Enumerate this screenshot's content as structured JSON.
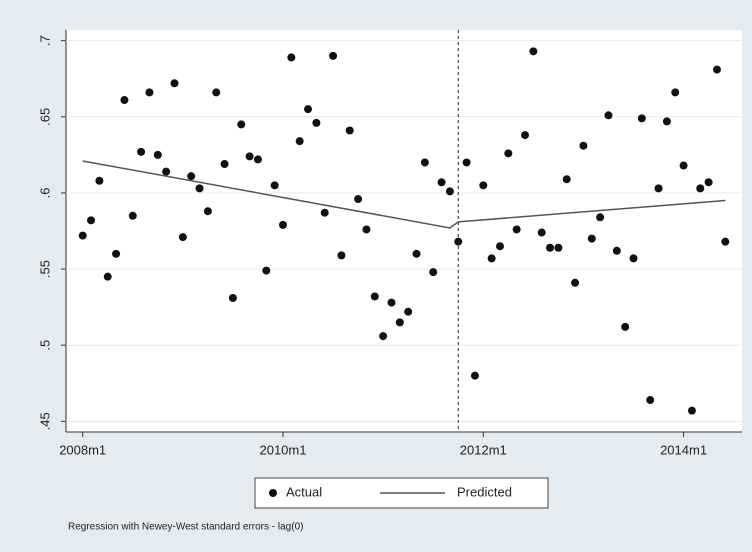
{
  "chart_data": {
    "type": "scatter",
    "note": "Regression with Newey-West standard errors - lag(0)",
    "x": [
      "2008m1",
      "2008m2",
      "2008m3",
      "2008m4",
      "2008m5",
      "2008m6",
      "2008m7",
      "2008m8",
      "2008m9",
      "2008m10",
      "2008m11",
      "2008m12",
      "2009m1",
      "2009m2",
      "2009m3",
      "2009m4",
      "2009m5",
      "2009m6",
      "2009m7",
      "2009m8",
      "2009m9",
      "2009m10",
      "2009m11",
      "2009m12",
      "2010m1",
      "2010m2",
      "2010m3",
      "2010m4",
      "2010m5",
      "2010m6",
      "2010m7",
      "2010m8",
      "2010m9",
      "2010m10",
      "2010m11",
      "2010m12",
      "2011m1",
      "2011m2",
      "2011m3",
      "2011m4",
      "2011m5",
      "2011m6",
      "2011m7",
      "2011m8",
      "2011m9",
      "2011m10",
      "2011m11",
      "2011m12",
      "2012m1",
      "2012m2",
      "2012m3",
      "2012m4",
      "2012m5",
      "2012m6",
      "2012m7",
      "2012m8",
      "2012m9",
      "2012m10",
      "2012m11",
      "2012m12",
      "2013m1",
      "2013m2",
      "2013m3",
      "2013m4",
      "2013m5",
      "2013m6",
      "2013m7",
      "2013m8",
      "2013m9",
      "2013m10",
      "2013m11",
      "2013m12",
      "2014m1",
      "2014m2",
      "2014m3",
      "2014m4",
      "2014m5",
      "2014m6"
    ],
    "series": [
      {
        "name": "Actual",
        "color": "#111111",
        "values": [
          0.572,
          0.582,
          0.608,
          0.545,
          0.56,
          0.661,
          0.585,
          0.627,
          0.666,
          0.625,
          0.614,
          0.672,
          0.571,
          0.611,
          0.603,
          0.588,
          0.666,
          0.619,
          0.531,
          0.645,
          0.624,
          0.622,
          0.549,
          0.605,
          0.579,
          0.689,
          0.634,
          0.655,
          0.646,
          0.587,
          0.69,
          0.559,
          0.641,
          0.596,
          0.576,
          0.532,
          0.506,
          0.528,
          0.515,
          0.522,
          0.56,
          0.62,
          0.548,
          0.607,
          0.601,
          0.568,
          0.62,
          0.48,
          0.605,
          0.557,
          0.565,
          0.626,
          0.576,
          0.638,
          0.693,
          0.574,
          0.564,
          0.564,
          0.609,
          0.541,
          0.631,
          0.57,
          0.584,
          0.651,
          0.562,
          0.512,
          0.557,
          0.649,
          0.464,
          0.603,
          0.647,
          0.666,
          0.618,
          0.457,
          0.603,
          0.607,
          0.681,
          0.568
        ]
      },
      {
        "name": "Predicted",
        "color": "#555555",
        "line": true,
        "x": [
          "2008m1",
          "2011m9",
          "2011m10",
          "2014m6"
        ],
        "values": [
          0.621,
          0.577,
          0.581,
          0.595
        ]
      }
    ],
    "xline": "2011m10",
    "xlim": [
      "2007m11",
      "2014m8"
    ],
    "xticks": [
      "2008m1",
      "2010m1",
      "2012m1",
      "2014m1"
    ],
    "ylim": [
      0.443,
      0.707
    ],
    "yticks": [
      {
        "value": 0.45,
        "label": ".45"
      },
      {
        "value": 0.5,
        "label": ".5"
      },
      {
        "value": 0.55,
        "label": ".55"
      },
      {
        "value": 0.6,
        "label": ".6"
      },
      {
        "value": 0.65,
        "label": ".65"
      },
      {
        "value": 0.7,
        "label": ".7"
      }
    ],
    "grid": true
  }
}
